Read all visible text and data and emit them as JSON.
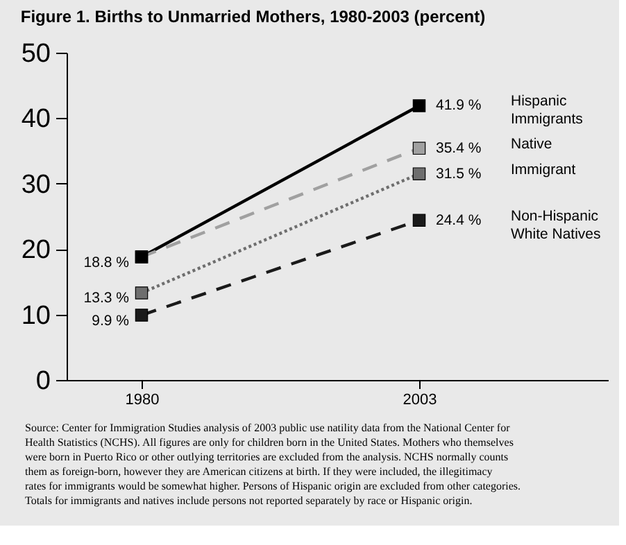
{
  "chart_data": {
    "type": "line",
    "title": "Figure 1. Births to Unmarried Mothers, 1980-2003 (percent)",
    "categories": [
      "1980",
      "2003"
    ],
    "series": [
      {
        "name": "Hispanic Immigrants",
        "color": "#000000",
        "line_style": "solid",
        "values": [
          18.8,
          41.9
        ],
        "value_labels": [
          "18.8 %",
          "41.9 %"
        ]
      },
      {
        "name": "Native",
        "color": "#a0a0a0",
        "line_style": "dashed",
        "values": [
          18.8,
          35.4
        ],
        "value_labels": [
          null,
          "35.4 %"
        ]
      },
      {
        "name": "Immigrant",
        "color": "#6e6e6e",
        "line_style": "dotted",
        "values": [
          13.3,
          31.5
        ],
        "value_labels": [
          "13.3 %",
          "31.5 %"
        ]
      },
      {
        "name": "Non-Hispanic White Natives",
        "color": "#1a1a1a",
        "line_style": "dashed",
        "values": [
          9.9,
          24.4
        ],
        "value_labels": [
          "9.9 %",
          "24.4 %"
        ]
      }
    ],
    "ylim": [
      0,
      50
    ],
    "yticks": [
      0,
      10,
      20,
      30,
      40,
      50
    ],
    "grid": false,
    "legend": false,
    "marker": "square",
    "annotations": [
      "Source: Center for Immigration Studies analysis of 2003 public use natility data from the National Center for Health Statistics (NCHS). All figures are only for children born in the United States.  Mothers who themselves were born in Puerto Rico or other outlying territories are excluded from the analysis.  NCHS normally counts them as foreign-born, however they are American citizens at birth.  If they were included, the illegitimacy rates for immigrants would be somewhat higher. Persons of Hispanic origin are excluded from other categories. Totals for immigrants and natives include persons not reported separately by race or Hispanic origin."
    ]
  }
}
